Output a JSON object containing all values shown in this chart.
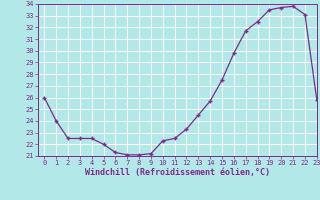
{
  "x": [
    0,
    1,
    2,
    3,
    4,
    5,
    6,
    7,
    8,
    9,
    10,
    11,
    12,
    13,
    14,
    15,
    16,
    17,
    18,
    19,
    20,
    21,
    22,
    23
  ],
  "y": [
    26.0,
    24.0,
    22.5,
    22.5,
    22.5,
    22.0,
    21.3,
    21.1,
    21.1,
    21.2,
    22.3,
    22.5,
    23.3,
    24.5,
    25.7,
    27.5,
    29.8,
    31.7,
    32.5,
    33.5,
    33.7,
    33.8,
    33.1,
    25.8
  ],
  "line_color": "#7b2d8b",
  "marker_color": "#7b2d8b",
  "bg_color": "#b3e8e8",
  "grid_color": "#ffffff",
  "xlabel": "Windchill (Refroidissement éolien,°C)",
  "xlabel_color": "#7b2d8b",
  "ylim": [
    21,
    34
  ],
  "xlim": [
    -0.5,
    23
  ],
  "yticks": [
    21,
    22,
    23,
    24,
    25,
    26,
    27,
    28,
    29,
    30,
    31,
    32,
    33,
    34
  ],
  "xticks": [
    0,
    1,
    2,
    3,
    4,
    5,
    6,
    7,
    8,
    9,
    10,
    11,
    12,
    13,
    14,
    15,
    16,
    17,
    18,
    19,
    20,
    21,
    22,
    23
  ],
  "tick_color": "#7b2d8b",
  "tick_fontsize": 5.0,
  "xlabel_fontsize": 6.0,
  "fig_width": 3.2,
  "fig_height": 2.0,
  "dpi": 100
}
